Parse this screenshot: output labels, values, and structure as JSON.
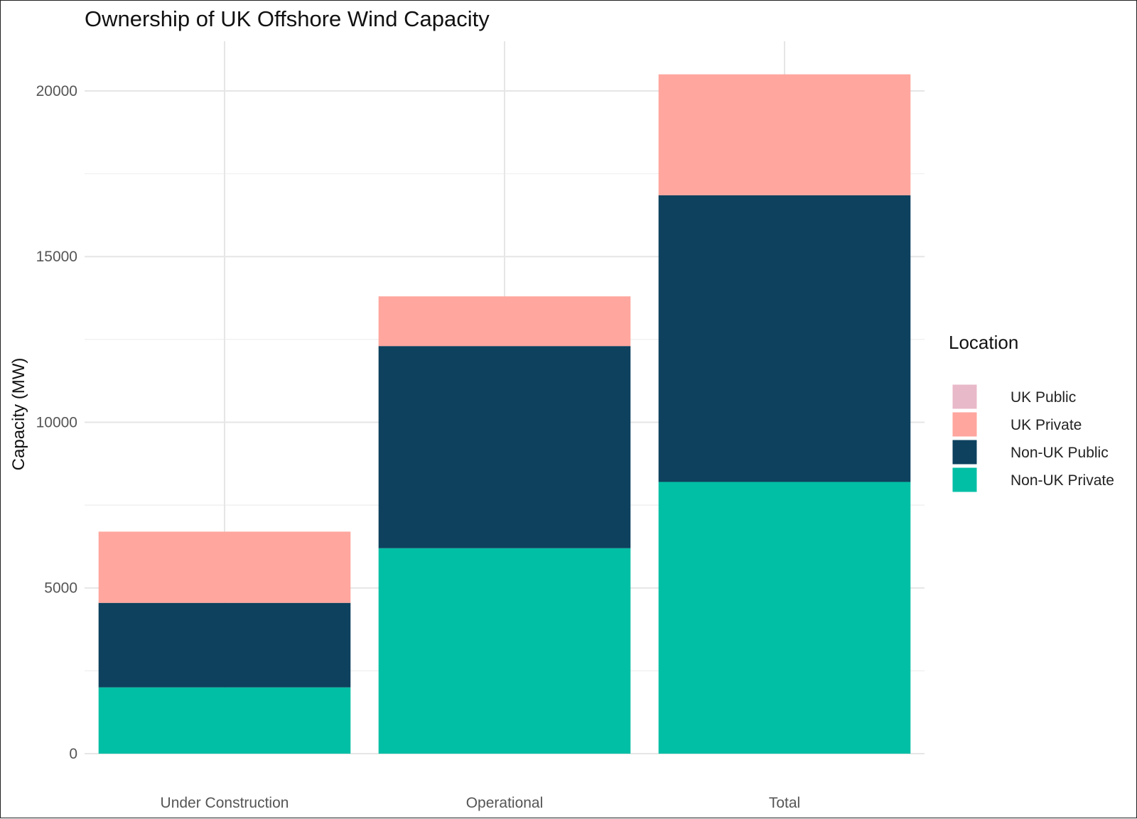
{
  "chart_data": {
    "type": "bar",
    "stacked": true,
    "title": "Ownership of UK Offshore Wind Capacity",
    "xlabel": "",
    "ylabel": "Capacity (MW)",
    "ylim": [
      0,
      21500
    ],
    "yticks": [
      0,
      5000,
      10000,
      15000,
      20000
    ],
    "grid": true,
    "categories": [
      "Under Construction",
      "Operational",
      "Total"
    ],
    "series": [
      {
        "name": "Non-UK Private",
        "color": "#00BFA5",
        "values": [
          2000,
          6200,
          8200
        ]
      },
      {
        "name": "Non-UK Public",
        "color": "#0D415E",
        "values": [
          2550,
          6100,
          8650
        ]
      },
      {
        "name": "UK Private",
        "color": "#FFA69E",
        "values": [
          2150,
          1500,
          3650
        ]
      },
      {
        "name": "UK Public",
        "color": "#E8B9C8",
        "values": [
          0,
          0,
          0
        ]
      }
    ],
    "legend": {
      "title": "Location",
      "position": "right",
      "order": [
        "UK Public",
        "UK Private",
        "Non-UK Public",
        "Non-UK Private"
      ]
    }
  }
}
